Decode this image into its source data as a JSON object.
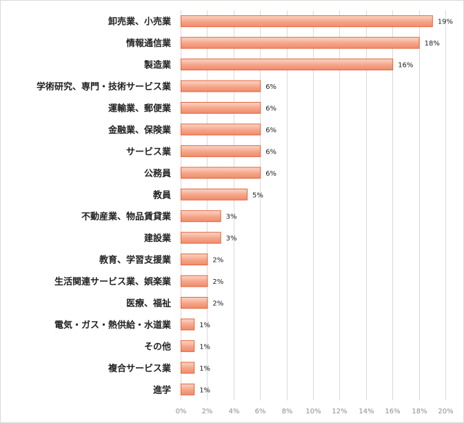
{
  "chart_data": {
    "type": "bar",
    "orientation": "horizontal",
    "title": "",
    "xlabel": "",
    "ylabel": "",
    "categories": [
      "卸売業、小売業",
      "情報通信業",
      "製造業",
      "学術研究、専門・技術サービス業",
      "運輸業、郵便業",
      "金融業、保険業",
      "サービス業",
      "公務員",
      "教員",
      "不動産業、物品賃貸業",
      "建設業",
      "教育、学習支援業",
      "生活関連サービス業、娯楽業",
      "医療、福祉",
      "電気・ガス・熱供給・水道業",
      "その他",
      "複合サービス業",
      "進学"
    ],
    "values": [
      19,
      18,
      16,
      6,
      6,
      6,
      6,
      6,
      5,
      3,
      3,
      2,
      2,
      2,
      1,
      1,
      1,
      1
    ],
    "value_labels": [
      "19%",
      "18%",
      "16%",
      "6%",
      "6%",
      "6%",
      "6%",
      "6%",
      "5%",
      "3%",
      "3%",
      "2%",
      "2%",
      "2%",
      "1%",
      "1%",
      "1%",
      "1%"
    ],
    "xlim": [
      0,
      20
    ],
    "xticks": [
      0,
      2,
      4,
      6,
      8,
      10,
      12,
      14,
      16,
      18,
      20
    ],
    "xtick_labels": [
      "0%",
      "2%",
      "4%",
      "6%",
      "8%",
      "10%",
      "12%",
      "14%",
      "16%",
      "18%",
      "20%"
    ],
    "grid": "vertical",
    "legend": "none",
    "colors": {
      "bar_top": "#fbd6c6",
      "bar_mid": "#f5a488",
      "bar_bottom": "#ef8c6a",
      "bar_border": "#e0623a",
      "grid": "#d9d9d9"
    }
  }
}
